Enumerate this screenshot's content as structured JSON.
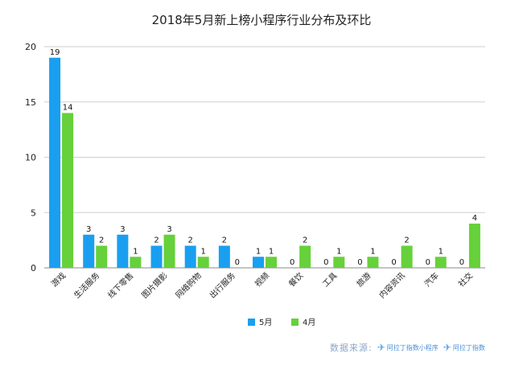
{
  "chart_data": {
    "type": "bar",
    "title": "2018年5月新上榜小程序行业分布及环比",
    "categories": [
      "游戏",
      "生活服务",
      "线下零售",
      "图片摄影",
      "网络购物",
      "出行服务",
      "视频",
      "餐饮",
      "工具",
      "旅游",
      "内容资讯",
      "汽车",
      "社交"
    ],
    "series": [
      {
        "name": "5月",
        "color": "#1a9ff0",
        "values": [
          19,
          3,
          3,
          2,
          2,
          2,
          1,
          0,
          0,
          0,
          0,
          0,
          0
        ]
      },
      {
        "name": "4月",
        "color": "#66d13a",
        "values": [
          14,
          2,
          1,
          3,
          1,
          0,
          1,
          2,
          1,
          1,
          2,
          1,
          4
        ]
      }
    ],
    "ylim": [
      0,
      20
    ],
    "yticks": [
      0,
      5,
      10,
      15,
      20
    ],
    "grid": true,
    "legend": "bottom-center",
    "xlabel": "",
    "ylabel": ""
  },
  "source": {
    "label": "数据来源:",
    "logo1": "阿拉丁指数小程序",
    "logo2": "阿拉丁指数"
  }
}
